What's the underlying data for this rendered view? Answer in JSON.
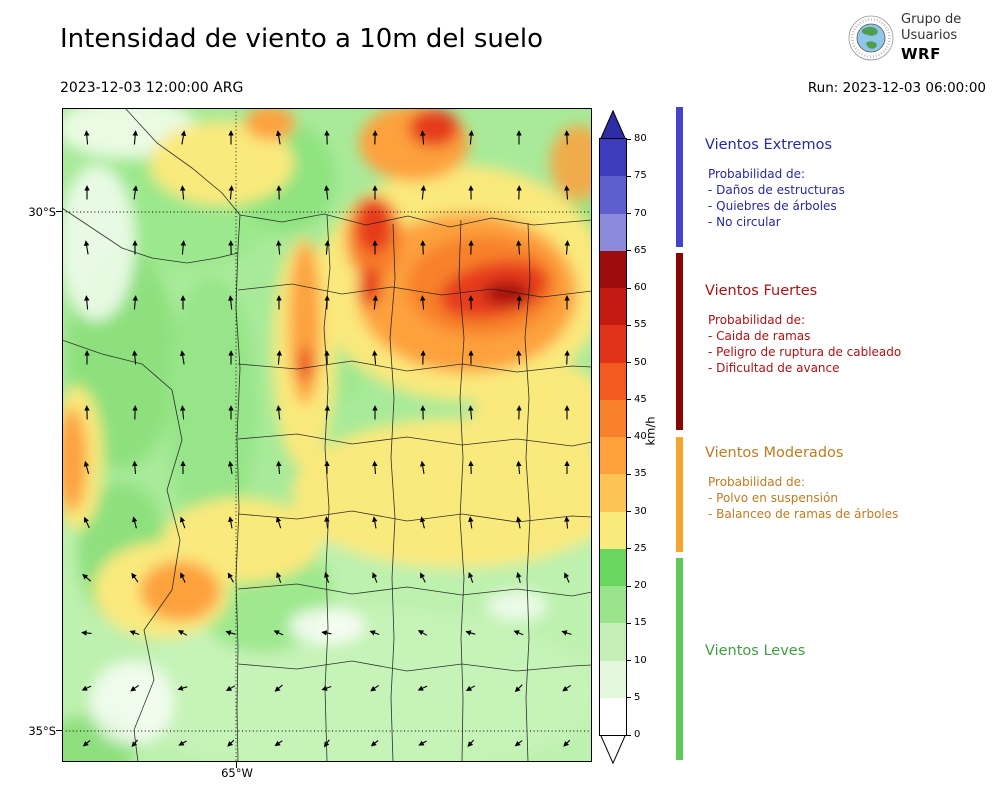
{
  "header": {
    "title": "Intensidad de viento a 10m del suelo",
    "valid_time": "2023-12-03 12:00:00 ARG",
    "run_label": "Run: 2023-12-03 06:00:00",
    "logo": {
      "line1": "Grupo de",
      "line2": "Usuarios",
      "line3": "WRF"
    }
  },
  "map": {
    "y_tick_labels": [
      "30°S",
      "35°S"
    ],
    "x_tick_labels": [
      "65°W"
    ]
  },
  "chart_data": {
    "type": "heatmap",
    "title": "Intensidad de viento a 10m del suelo",
    "valid_time": "2023-12-03 12:00:00 ARG",
    "model_run": "Run: 2023-12-03 06:00:00",
    "units": "km/h",
    "x_ticks": [
      "65°W"
    ],
    "y_ticks": [
      "30°S",
      "35°S"
    ],
    "legend_position": "right",
    "colorbar": {
      "unit": "km/h",
      "ticks": [
        0,
        5,
        10,
        15,
        20,
        25,
        30,
        35,
        40,
        45,
        50,
        55,
        60,
        65,
        70,
        75,
        80
      ],
      "colors": [
        "#ffffff",
        "#e3f8dd",
        "#c3efb7",
        "#99e48b",
        "#68d65f",
        "#fae97d",
        "#fdc455",
        "#fda13c",
        "#f8812c",
        "#f25a20",
        "#e03318",
        "#c31b12",
        "#9e0d0e",
        "#8b8bdc",
        "#5e5ecd",
        "#3c3cbd"
      ],
      "over_color": "#2d2da6",
      "under_color": "#ffffff"
    },
    "wind_arrows": {
      "cols": [
        25,
        73,
        121,
        169,
        217,
        265,
        313,
        361,
        409,
        457,
        505
      ],
      "rows": [
        {
          "y": 30,
          "len": 13,
          "angles": [
            95,
            85,
            80,
            90,
            100,
            92,
            88,
            95,
            85,
            90,
            93
          ]
        },
        {
          "y": 85,
          "len": 13,
          "angles": [
            90,
            82,
            95,
            85,
            92,
            96,
            90,
            84,
            91,
            88,
            94
          ]
        },
        {
          "y": 140,
          "len": 13,
          "angles": [
            100,
            90,
            85,
            92,
            95,
            85,
            90,
            93,
            88,
            95,
            86
          ]
        },
        {
          "y": 195,
          "len": 13,
          "angles": [
            95,
            85,
            90,
            96,
            90,
            88,
            84,
            95,
            92,
            86,
            90
          ]
        },
        {
          "y": 250,
          "len": 13,
          "angles": [
            90,
            95,
            100,
            90,
            85,
            92,
            95,
            88,
            90,
            94,
            87
          ]
        },
        {
          "y": 305,
          "len": 13,
          "angles": [
            92,
            88,
            95,
            90,
            96,
            85,
            90,
            92,
            95,
            88,
            90
          ]
        },
        {
          "y": 360,
          "len": 12,
          "angles": [
            105,
            95,
            90,
            100,
            95,
            90,
            95,
            100,
            92,
            96,
            90
          ]
        },
        {
          "y": 415,
          "len": 11,
          "angles": [
            115,
            105,
            110,
            100,
            108,
            95,
            100,
            105,
            98,
            102,
            95
          ]
        },
        {
          "y": 470,
          "len": 10,
          "angles": [
            140,
            125,
            115,
            120,
            110,
            108,
            112,
            118,
            110,
            105,
            115
          ]
        },
        {
          "y": 525,
          "len": 9,
          "angles": [
            175,
            160,
            150,
            165,
            155,
            170,
            160,
            150,
            165,
            158,
            162
          ]
        },
        {
          "y": 580,
          "len": 9,
          "angles": [
            205,
            215,
            195,
            210,
            220,
            200,
            215,
            205,
            210,
            225,
            215
          ]
        },
        {
          "y": 635,
          "len": 8,
          "angles": [
            220,
            230,
            210,
            225,
            215,
            235,
            220,
            210,
            228,
            218,
            225
          ]
        }
      ]
    }
  },
  "legend": {
    "sections": [
      {
        "id": "extremos",
        "title": "Vientos Extremos",
        "text_color": "#28289e",
        "bar_color": "#4343cd",
        "details": [
          "Probabilidad de:",
          "- Daños de estructuras",
          "- Quiebres de árboles",
          "- No circular"
        ]
      },
      {
        "id": "fuertes",
        "title": "Vientos Fuertes",
        "text_color": "#a81414",
        "bar_color": "#8c0303",
        "details": [
          "Probabilidad de:",
          "- Caida de ramas",
          "- Peligro de ruptura de cableado",
          "- Dificultad de avance"
        ]
      },
      {
        "id": "moderados",
        "title": "Vientos Moderados",
        "text_color": "#bd7c20",
        "bar_color": "#f6a42e",
        "details": [
          "Probabilidad de:",
          "- Polvo en suspensión",
          "- Balanceo de ramas de árboles"
        ]
      },
      {
        "id": "leves",
        "title": "Vientos Leves",
        "text_color": "#3f9e3f",
        "bar_color": "#5bc95b",
        "details": []
      }
    ]
  }
}
